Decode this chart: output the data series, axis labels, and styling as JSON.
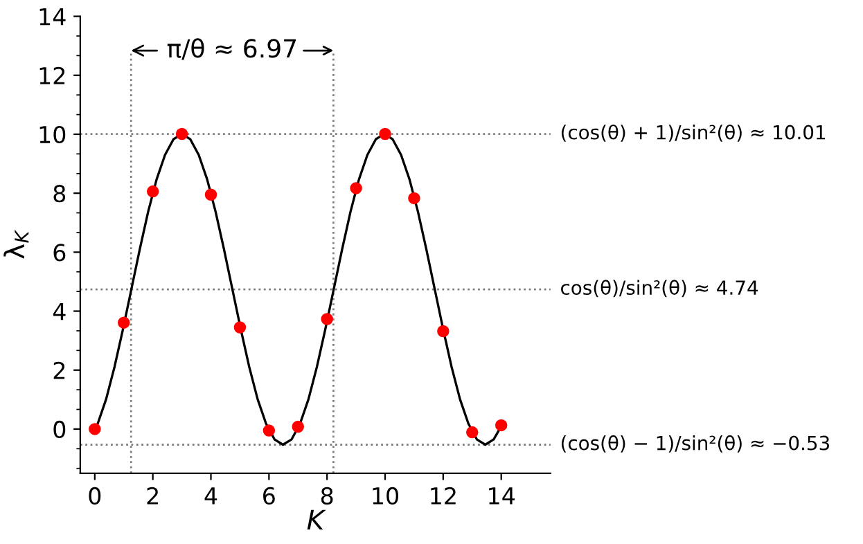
{
  "chart_data": {
    "type": "line",
    "xlabel": "K",
    "ylabel": "λ$_{K}$",
    "xlim": [
      -0.5,
      15.7
    ],
    "ylim": [
      -1.5,
      14
    ],
    "xticks": [
      0,
      2,
      4,
      6,
      8,
      10,
      12,
      14
    ],
    "yticks": [
      0,
      2,
      4,
      6,
      8,
      10,
      12,
      14
    ],
    "grid": false,
    "legend": false,
    "series": [
      {
        "color": "#000000",
        "marker": "none",
        "line_style": "solid",
        "x": [
          0,
          0.1,
          0.39,
          0.68,
          0.97,
          1.26,
          1.55,
          1.84,
          2.13,
          2.42,
          2.71,
          3.0,
          3.29,
          3.58,
          3.87,
          4.16,
          4.45,
          4.74,
          5.03,
          5.32,
          5.61,
          5.9,
          6.19,
          6.48,
          6.78,
          7.07,
          7.36,
          7.65,
          7.94,
          8.23,
          8.52,
          8.81,
          9.1,
          9.39,
          9.68,
          9.97,
          10.26,
          10.55,
          10.84,
          11.13,
          11.42,
          11.71,
          12.0,
          12.29,
          12.58,
          12.87,
          13.16,
          13.45,
          13.74,
          14
        ],
        "values": [
          -0.03,
          0.18,
          1.01,
          2.11,
          3.38,
          4.74,
          6.1,
          7.38,
          8.47,
          9.3,
          9.83,
          10.01,
          9.83,
          9.3,
          8.47,
          7.38,
          6.1,
          4.74,
          3.38,
          2.11,
          1.01,
          0.18,
          -0.35,
          -0.53,
          -0.35,
          0.18,
          1.01,
          2.11,
          3.38,
          4.74,
          6.1,
          7.38,
          8.47,
          9.3,
          9.83,
          10.01,
          9.83,
          9.3,
          8.47,
          7.38,
          6.1,
          4.74,
          3.38,
          2.11,
          1.01,
          0.18,
          -0.35,
          -0.53,
          -0.35,
          0.1
        ]
      },
      {
        "type": "scatter",
        "color": "#ff0000",
        "marker": "circle",
        "x": [
          0,
          1,
          2,
          3,
          4,
          5,
          6,
          7,
          8,
          9,
          10,
          11,
          12,
          13,
          14
        ],
        "values": [
          0,
          3.61,
          8.06,
          10.01,
          7.95,
          3.45,
          -0.05,
          0.08,
          3.73,
          8.17,
          10.01,
          7.83,
          3.32,
          -0.11,
          0.13
        ]
      }
    ],
    "ref_lines": [
      {
        "axis": "y",
        "value": 10.01,
        "label": "(cos(θ) + 1)/sin²(θ) ≈ 10.01",
        "color": "#808080",
        "line_style": "dotted"
      },
      {
        "axis": "y",
        "value": 4.74,
        "label": "cos(θ)/sin²(θ) ≈ 4.74",
        "color": "#808080",
        "line_style": "dotted"
      },
      {
        "axis": "y",
        "value": -0.53,
        "label": "(cos(θ) − 1)/sin²(θ) ≈ −0.53",
        "color": "#808080",
        "line_style": "dotted"
      },
      {
        "axis": "x",
        "value": 1.25,
        "color": "#808080",
        "line_style": "dotted"
      },
      {
        "axis": "x",
        "value": 8.22,
        "color": "#808080",
        "line_style": "dotted"
      }
    ],
    "annotations": [
      "π/θ ≈ 6.97"
    ]
  }
}
